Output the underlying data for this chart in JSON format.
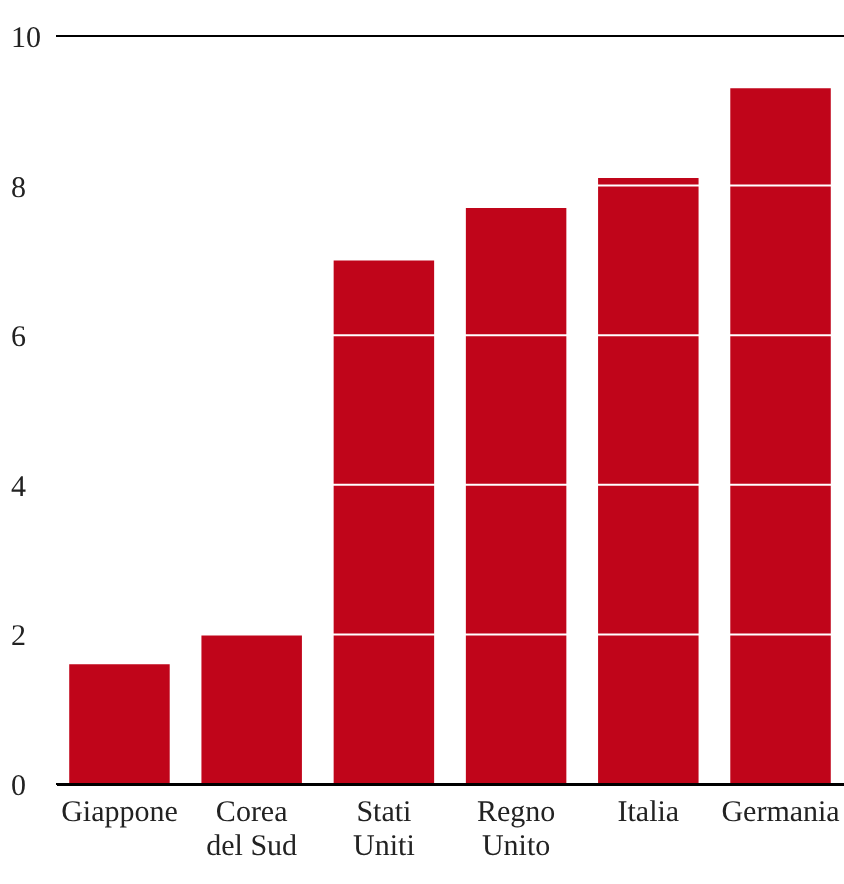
{
  "chart_data": {
    "type": "bar",
    "categories": [
      "Giappone",
      "Corea del Sud",
      "Stati Uniti",
      "Regno Unito",
      "Italia",
      "Germania"
    ],
    "values": [
      1.6,
      2.0,
      7.0,
      7.7,
      8.1,
      9.3
    ],
    "color": "#c0051a",
    "ylim": [
      0,
      10
    ],
    "yticks": [
      0,
      2,
      4,
      6,
      8,
      10
    ],
    "grid": "y"
  }
}
